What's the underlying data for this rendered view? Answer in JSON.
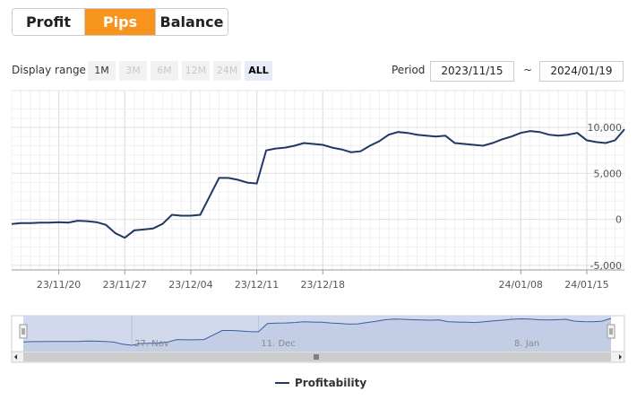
{
  "tabs": [
    {
      "label": "Profit"
    },
    {
      "label": "Pips"
    },
    {
      "label": "Balance"
    }
  ],
  "controls": {
    "display_range_label": "Display range",
    "ranges": [
      "1M",
      "3M",
      "6M",
      "12M",
      "24M",
      "ALL"
    ],
    "period_label": "Period",
    "period_from": "2023/11/15",
    "period_separator": "~",
    "period_to": "2024/01/19"
  },
  "colors": {
    "active_tab": "#f7941d",
    "series_line": "#1f3864",
    "navigator_fill": "#cdd5ea"
  },
  "chart_data": {
    "type": "line",
    "title": "",
    "xlabel": "",
    "ylabel": "",
    "ylim": [
      -5500,
      14000
    ],
    "y_ticks": [
      -5000,
      0,
      5000,
      10000
    ],
    "y_tick_labels": [
      "-5,000",
      "0",
      "5,000",
      "10,000"
    ],
    "x_tick_labels": [
      "23/11/20",
      "23/11/27",
      "23/12/04",
      "23/12/11",
      "23/12/18",
      "24/01/08",
      "24/01/15"
    ],
    "navigator_labels": [
      "27. Nov",
      "11. Dec",
      "8. Jan"
    ],
    "grid": true,
    "legend_position": "bottom-center",
    "series": [
      {
        "name": "Profitability",
        "x": [
          "2023-11-15",
          "2023-11-16",
          "2023-11-17",
          "2023-11-18",
          "2023-11-19",
          "2023-11-20",
          "2023-11-21",
          "2023-11-22",
          "2023-11-23",
          "2023-11-24",
          "2023-11-25",
          "2023-11-26",
          "2023-11-27",
          "2023-11-28",
          "2023-11-29",
          "2023-11-30",
          "2023-12-01",
          "2023-12-02",
          "2023-12-03",
          "2023-12-04",
          "2023-12-05",
          "2023-12-06",
          "2023-12-07",
          "2023-12-08",
          "2023-12-09",
          "2023-12-10",
          "2023-12-11",
          "2023-12-12",
          "2023-12-13",
          "2023-12-14",
          "2023-12-15",
          "2023-12-16",
          "2023-12-17",
          "2023-12-18",
          "2023-12-19",
          "2023-12-20",
          "2023-12-21",
          "2023-12-22",
          "2023-12-23",
          "2023-12-24",
          "2023-12-25",
          "2023-12-26",
          "2023-12-27",
          "2023-12-28",
          "2023-12-29",
          "2023-12-30",
          "2023-12-31",
          "2024-01-01",
          "2024-01-02",
          "2024-01-03",
          "2024-01-04",
          "2024-01-05",
          "2024-01-06",
          "2024-01-07",
          "2024-01-08",
          "2024-01-09",
          "2024-01-10",
          "2024-01-11",
          "2024-01-12",
          "2024-01-13",
          "2024-01-14",
          "2024-01-15",
          "2024-01-16",
          "2024-01-17",
          "2024-01-18",
          "2024-01-19"
        ],
        "values": [
          -500,
          -400,
          -400,
          -350,
          -350,
          -300,
          -350,
          -150,
          -200,
          -300,
          -600,
          -1500,
          -2000,
          -1200,
          -1100,
          -1000,
          -500,
          500,
          400,
          400,
          500,
          2500,
          4500,
          4500,
          4300,
          4000,
          3900,
          7500,
          7700,
          7800,
          8000,
          8300,
          8200,
          8100,
          7800,
          7600,
          7300,
          7400,
          8000,
          8500,
          9200,
          9500,
          9400,
          9200,
          9100,
          9000,
          9100,
          8300,
          8200,
          8100,
          8000,
          8300,
          8700,
          9000,
          9400,
          9600,
          9500,
          9200,
          9100,
          9200,
          9400,
          8600,
          8400,
          8300,
          8600,
          9800
        ]
      }
    ]
  }
}
